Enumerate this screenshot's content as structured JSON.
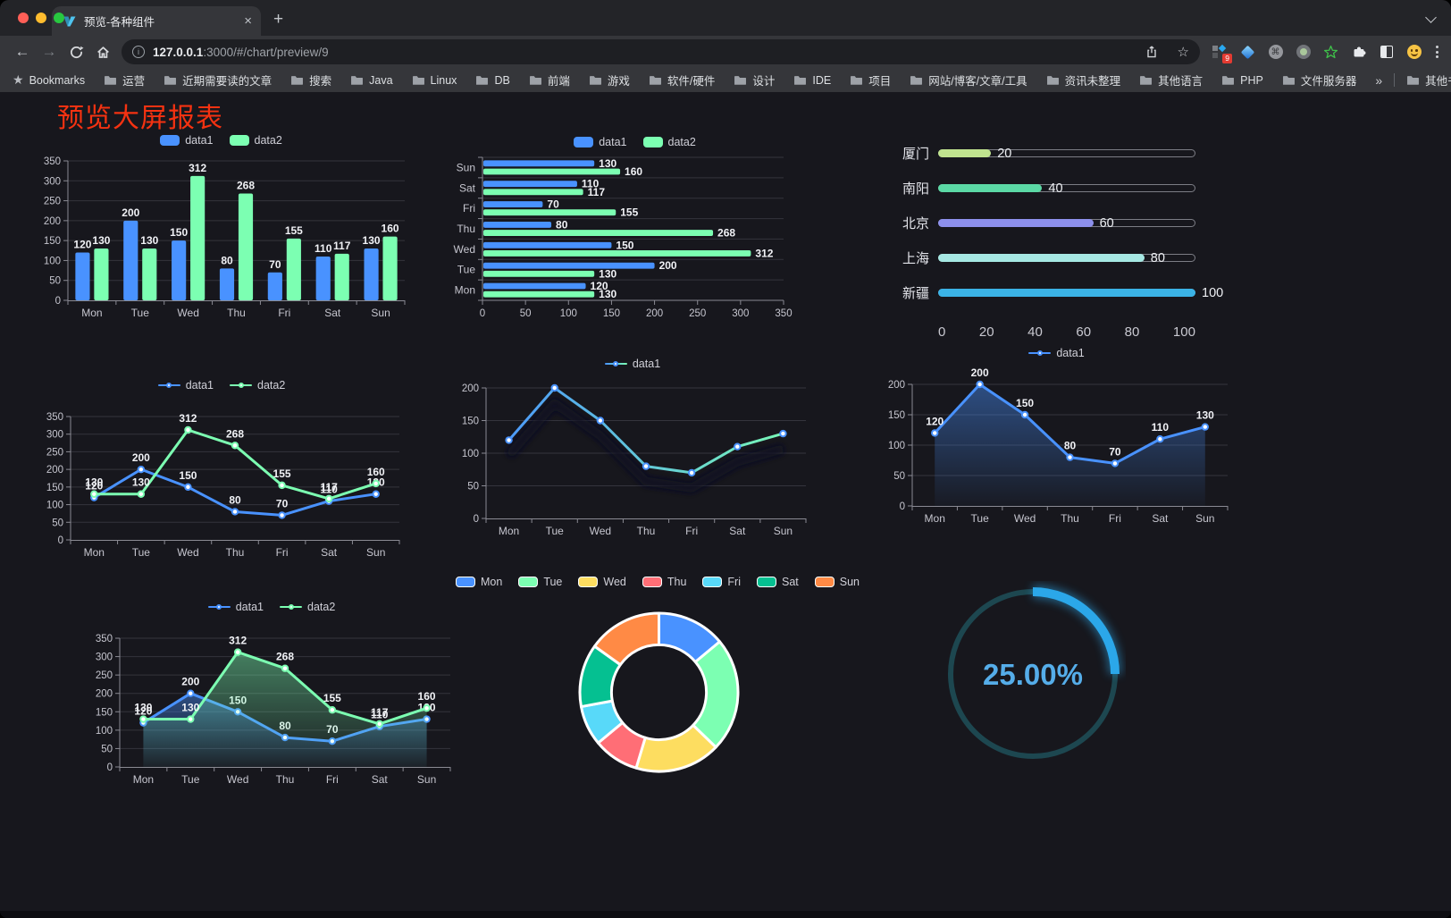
{
  "browser": {
    "traffic_lights": [
      "#ff5f57",
      "#febc2e",
      "#28c840"
    ],
    "tab_title": "预览-各种组件",
    "url_host": "127.0.0.1",
    "url_path": ":3000/#/chart/preview/9",
    "extension_badge": "9",
    "icons": {
      "back": "←",
      "forward": "→",
      "close_tab": "×",
      "new_tab": "+",
      "bookmarks_star": "★",
      "url_star": "☆",
      "info": "i",
      "command": "⌘",
      "overflow": "»"
    },
    "bookmarks_bar": {
      "root_label": "Bookmarks",
      "folders": [
        "运营",
        "近期需要读的文章",
        "搜索",
        "Java",
        "Linux",
        "DB",
        "前端",
        "游戏",
        "软件/硬件",
        "设计",
        "IDE",
        "项目",
        "网站/博客/文章/工具",
        "资讯未整理",
        "其他语言",
        "PHP",
        "文件服务器"
      ],
      "other_bookmarks_label": "其他书签"
    }
  },
  "page": {
    "title": "预览大屏报表",
    "title_color": "#f53211",
    "background": "#17171d"
  },
  "chart_data": [
    {
      "id": "grouped-bar",
      "type": "bar",
      "categories": [
        "Mon",
        "Tue",
        "Wed",
        "Thu",
        "Fri",
        "Sat",
        "Sun"
      ],
      "series": [
        {
          "name": "data1",
          "color": "#4992ff",
          "values": [
            120,
            200,
            150,
            80,
            70,
            110,
            130
          ]
        },
        {
          "name": "data2",
          "color": "#7cffb2",
          "values": [
            130,
            130,
            312,
            268,
            155,
            117,
            160
          ]
        }
      ],
      "ylim": [
        0,
        350
      ],
      "ystep": 50,
      "legend_position": "top",
      "value_labels": true,
      "grid": true
    },
    {
      "id": "horizontal-bar",
      "type": "barh",
      "categories": [
        "Sun",
        "Sat",
        "Fri",
        "Thu",
        "Wed",
        "Tue",
        "Mon"
      ],
      "series": [
        {
          "name": "data1",
          "color": "#4992ff",
          "values": [
            130,
            110,
            70,
            80,
            150,
            200,
            120
          ]
        },
        {
          "name": "data2",
          "color": "#7cffb2",
          "values": [
            160,
            117,
            155,
            268,
            312,
            130,
            130
          ]
        }
      ],
      "xlim": [
        0,
        350
      ],
      "xstep": 50,
      "legend_position": "top",
      "value_labels": true,
      "grid": true
    },
    {
      "id": "progress-bars",
      "type": "progress",
      "max": 100,
      "axis_ticks": [
        0,
        20,
        40,
        60,
        80,
        100
      ],
      "items": [
        {
          "label": "厦门",
          "value": 20,
          "color": "#c0e38f"
        },
        {
          "label": "南阳",
          "value": 40,
          "color": "#5bd9a5"
        },
        {
          "label": "北京",
          "value": 60,
          "color": "#8d90ec"
        },
        {
          "label": "上海",
          "value": 80,
          "color": "#a6e8e3"
        },
        {
          "label": "新疆",
          "value": 100,
          "color": "#3bb3e6"
        }
      ]
    },
    {
      "id": "line-dual",
      "type": "line",
      "categories": [
        "Mon",
        "Tue",
        "Wed",
        "Thu",
        "Fri",
        "Sat",
        "Sun"
      ],
      "series": [
        {
          "name": "data1",
          "color": "#4992ff",
          "values": [
            120,
            200,
            150,
            80,
            70,
            110,
            130
          ]
        },
        {
          "name": "data2",
          "color": "#7cffb2",
          "values": [
            130,
            130,
            312,
            268,
            155,
            117,
            160
          ]
        }
      ],
      "ylim": [
        0,
        350
      ],
      "ystep": 50,
      "legend_position": "top",
      "value_labels": true,
      "grid": true
    },
    {
      "id": "gradient-line",
      "type": "line",
      "categories": [
        "Mon",
        "Tue",
        "Wed",
        "Thu",
        "Fri",
        "Sat",
        "Sun"
      ],
      "series": [
        {
          "name": "data1",
          "gradient": [
            "#4992ff",
            "#7cffb2"
          ],
          "shadow": true,
          "values": [
            120,
            200,
            150,
            80,
            70,
            110,
            130
          ]
        }
      ],
      "ylim": [
        0,
        200
      ],
      "ystep": 50,
      "legend_position": "top",
      "value_labels": false,
      "grid": true
    },
    {
      "id": "area-line",
      "type": "line",
      "categories": [
        "Mon",
        "Tue",
        "Wed",
        "Thu",
        "Fri",
        "Sat",
        "Sun"
      ],
      "series": [
        {
          "name": "data1",
          "color": "#4992ff",
          "area": true,
          "values": [
            120,
            200,
            150,
            80,
            70,
            110,
            130
          ]
        }
      ],
      "ylim": [
        0,
        200
      ],
      "ystep": 50,
      "legend_position": "top",
      "value_labels": true,
      "grid": true
    },
    {
      "id": "area-dual",
      "type": "line",
      "categories": [
        "Mon",
        "Tue",
        "Wed",
        "Thu",
        "Fri",
        "Sat",
        "Sun"
      ],
      "series": [
        {
          "name": "data1",
          "color": "#4992ff",
          "area": true,
          "values": [
            120,
            200,
            150,
            80,
            70,
            110,
            130
          ]
        },
        {
          "name": "data2",
          "color": "#7cffb2",
          "area": true,
          "values": [
            130,
            130,
            312,
            268,
            155,
            117,
            160
          ]
        }
      ],
      "ylim": [
        0,
        350
      ],
      "ystep": 50,
      "legend_position": "top",
      "value_labels": true,
      "grid": true
    },
    {
      "id": "donut",
      "type": "pie",
      "categories": [
        "Mon",
        "Tue",
        "Wed",
        "Thu",
        "Fri",
        "Sat",
        "Sun"
      ],
      "values": [
        120,
        200,
        150,
        80,
        70,
        110,
        130
      ],
      "colors": [
        "#4992ff",
        "#7cffb2",
        "#fddd60",
        "#ff6e76",
        "#58d9f9",
        "#05c091",
        "#ff8a45"
      ],
      "border_color": "#ffffff",
      "inner_radius_ratio": 0.6,
      "legend_position": "top"
    },
    {
      "id": "gauge",
      "type": "gauge",
      "value": 25,
      "display": "25.00%",
      "progress_color": "#2ba7e9",
      "track_color": "#1d4750",
      "text_color": "#55ade9"
    }
  ]
}
